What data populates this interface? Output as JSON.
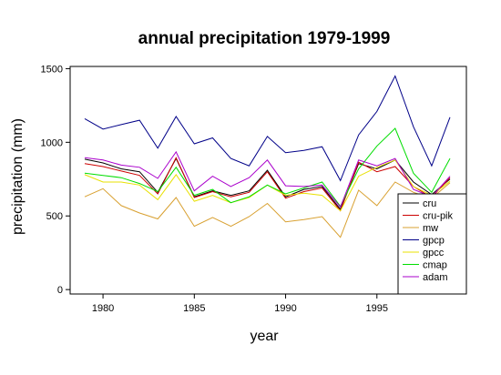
{
  "chart_data": {
    "type": "line",
    "title": "annual precipitation 1979-1999",
    "xlabel": "year",
    "ylabel": "precipitation (mm)",
    "x": [
      1979,
      1980,
      1981,
      1982,
      1983,
      1984,
      1985,
      1986,
      1987,
      1988,
      1989,
      1990,
      1991,
      1992,
      1993,
      1994,
      1995,
      1996,
      1997,
      1998,
      1999
    ],
    "xlim": [
      1978.2,
      1999.9
    ],
    "ylim": [
      -30,
      1515
    ],
    "xticks": [
      1980,
      1985,
      1990,
      1995
    ],
    "yticks": [
      0,
      500,
      1000,
      1500
    ],
    "grid": false,
    "legend_position": "bottom-right",
    "series": [
      {
        "name": "cru",
        "color": "#000000",
        "values": [
          885,
          860,
          820,
          800,
          660,
          890,
          630,
          670,
          640,
          670,
          810,
          630,
          680,
          700,
          545,
          855,
          820,
          880,
          730,
          645,
          750
        ]
      },
      {
        "name": "cru-pik",
        "color": "#cc0000",
        "values": [
          855,
          835,
          805,
          775,
          650,
          895,
          625,
          665,
          630,
          660,
          800,
          620,
          665,
          690,
          535,
          865,
          800,
          835,
          700,
          625,
          760
        ]
      },
      {
        "name": "mw",
        "color": "#d8a030",
        "values": [
          630,
          685,
          570,
          520,
          480,
          625,
          430,
          490,
          430,
          495,
          585,
          460,
          475,
          495,
          355,
          675,
          570,
          730,
          660,
          620,
          725
        ]
      },
      {
        "name": "gpcp",
        "color": "#000088",
        "values": [
          1160,
          1090,
          1120,
          1150,
          960,
          1175,
          990,
          1030,
          890,
          840,
          1040,
          930,
          945,
          970,
          740,
          1050,
          1210,
          1450,
          1105,
          840,
          1170
        ]
      },
      {
        "name": "gpcc",
        "color": "#e8e000",
        "values": [
          780,
          730,
          730,
          710,
          610,
          780,
          600,
          640,
          590,
          625,
          710,
          640,
          655,
          640,
          535,
          770,
          830,
          880,
          700,
          640,
          735
        ]
      },
      {
        "name": "cmap",
        "color": "#00dd00",
        "values": [
          790,
          775,
          760,
          720,
          665,
          830,
          640,
          680,
          590,
          630,
          710,
          650,
          690,
          730,
          565,
          820,
          975,
          1095,
          790,
          660,
          890
        ]
      },
      {
        "name": "adam",
        "color": "#aa00cc",
        "values": [
          895,
          880,
          845,
          830,
          755,
          935,
          670,
          770,
          700,
          760,
          880,
          705,
          700,
          710,
          560,
          880,
          840,
          890,
          680,
          630,
          770
        ]
      }
    ]
  }
}
